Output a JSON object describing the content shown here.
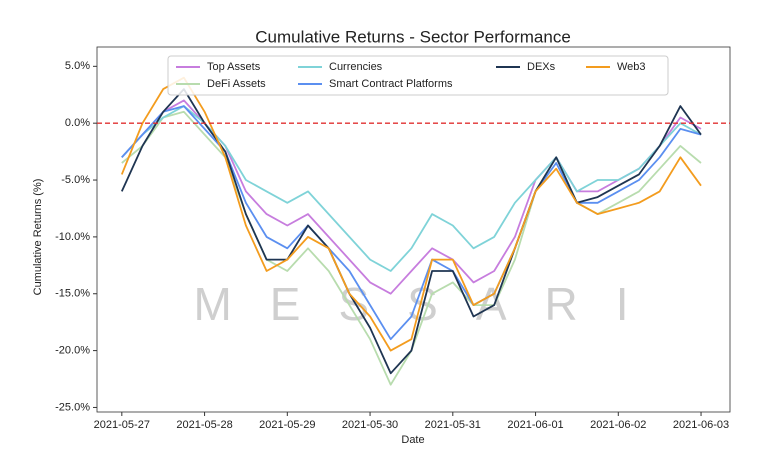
{
  "chart_data": {
    "type": "line",
    "title": "Cumulative Returns - Sector Performance",
    "xlabel": "Date",
    "ylabel": "Cumulative Returns (%)",
    "watermark": "MESSARI",
    "x": [
      0,
      0.25,
      0.5,
      0.75,
      1,
      1.25,
      1.5,
      1.75,
      2,
      2.25,
      2.5,
      2.75,
      3,
      3.25,
      3.5,
      3.75,
      4,
      4.25,
      4.5,
      4.75,
      5,
      5.25,
      5.5,
      5.75,
      6,
      6.25,
      6.5,
      6.75,
      7
    ],
    "series": [
      {
        "name": "Top Assets",
        "color": "#c77dde",
        "values": [
          -3,
          -1,
          1,
          2,
          0,
          -2,
          -6,
          -8,
          -9,
          -8,
          -10,
          -12,
          -14,
          -15,
          -13,
          -11,
          -12,
          -14,
          -13,
          -10,
          -5,
          -3,
          -6,
          -6,
          -5,
          -4,
          -2,
          0.5,
          -0.5
        ]
      },
      {
        "name": "DeFi Assets",
        "color": "#b8dcae",
        "values": [
          -3.5,
          -2,
          0.5,
          1,
          -1,
          -3,
          -8,
          -12,
          -13,
          -11,
          -13,
          -16,
          -19,
          -23,
          -20,
          -15,
          -14,
          -16,
          -16,
          -12,
          -6,
          -3,
          -7,
          -8,
          -7,
          -6,
          -4,
          -2,
          -3.5
        ]
      },
      {
        "name": "Currencies",
        "color": "#7fd3d8",
        "values": [
          -3,
          -1,
          0.5,
          1.5,
          0,
          -2,
          -5,
          -6,
          -7,
          -6,
          -8,
          -10,
          -12,
          -13,
          -11,
          -8,
          -9,
          -11,
          -10,
          -7,
          -5,
          -3,
          -6,
          -5,
          -5,
          -4,
          -2,
          0,
          -1
        ]
      },
      {
        "name": "Smart Contract Platforms",
        "color": "#5b8ff0",
        "values": [
          -3,
          -1,
          1,
          1.5,
          -0.5,
          -2.5,
          -7,
          -10,
          -11,
          -9,
          -11,
          -13,
          -16,
          -19,
          -17,
          -12,
          -13,
          -16,
          -15,
          -11,
          -6,
          -3.5,
          -7,
          -7,
          -6,
          -5,
          -3,
          -0.5,
          -1
        ]
      },
      {
        "name": "DEXs",
        "color": "#1f3552",
        "values": [
          -6,
          -2,
          1,
          3,
          0,
          -2.5,
          -8,
          -12,
          -12,
          -9,
          -11,
          -15,
          -18,
          -22,
          -20,
          -13,
          -13,
          -17,
          -16,
          -11,
          -6,
          -3,
          -7,
          -6.5,
          -5.5,
          -4.5,
          -2,
          1.5,
          -1
        ]
      },
      {
        "name": "Web3",
        "color": "#f39c1e",
        "values": [
          -4.5,
          0,
          3,
          4,
          1,
          -3,
          -9,
          -13,
          -12,
          -10,
          -11,
          -15,
          -17,
          -20,
          -19,
          -12,
          -12,
          -16,
          -15,
          -11,
          -6,
          -4,
          -7,
          -8,
          -7.5,
          -7,
          -6,
          -3,
          -5.5
        ]
      }
    ],
    "xlim": [
      -0.3,
      7.35
    ],
    "xticks": [
      {
        "value": 0,
        "label": "2021-05-27"
      },
      {
        "value": 1,
        "label": "2021-05-28"
      },
      {
        "value": 2,
        "label": "2021-05-29"
      },
      {
        "value": 3,
        "label": "2021-05-30"
      },
      {
        "value": 4,
        "label": "2021-05-31"
      },
      {
        "value": 5,
        "label": "2021-06-01"
      },
      {
        "value": 6,
        "label": "2021-06-02"
      },
      {
        "value": 7,
        "label": "2021-06-03"
      }
    ],
    "ylim": [
      -25.4,
      6.7
    ],
    "yticks": [
      {
        "value": 5,
        "label": "5.0%"
      },
      {
        "value": 0,
        "label": "0.0%"
      },
      {
        "value": -5,
        "label": "-5.0%"
      },
      {
        "value": -10,
        "label": "-10.0%"
      },
      {
        "value": -15,
        "label": "-15.0%"
      },
      {
        "value": -20,
        "label": "-20.0%"
      },
      {
        "value": -25,
        "label": "-25.0%"
      }
    ],
    "hline": {
      "value": 0,
      "color": "#e03131"
    },
    "legend": "upper center"
  }
}
